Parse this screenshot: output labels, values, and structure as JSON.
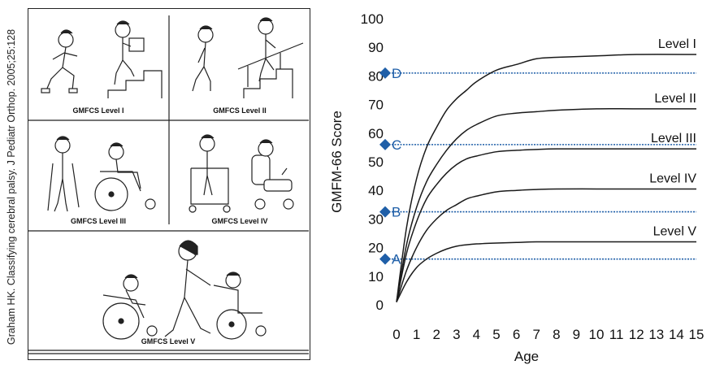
{
  "credit": "Graham HK. Classifying cerebral palsy. J Pediatr Orthop. 2005;25:128",
  "panels": {
    "l1": "GMFCS Level I",
    "l2": "GMFCS Level II",
    "l3": "GMFCS Level III",
    "l4": "GMFCS Level IV",
    "l5": "GMFCS Level V"
  },
  "chart_data": {
    "type": "line",
    "title": "",
    "xlabel": "Age",
    "ylabel": "GMFM-66 Score",
    "xlim": [
      0,
      15
    ],
    "ylim": [
      0,
      100
    ],
    "xticks": [
      0,
      1,
      2,
      3,
      4,
      5,
      6,
      7,
      8,
      9,
      10,
      11,
      12,
      13,
      14,
      15
    ],
    "yticks": [
      0,
      10,
      20,
      30,
      40,
      50,
      60,
      70,
      80,
      90,
      100
    ],
    "grid": false,
    "x": [
      0,
      0.5,
      1,
      1.5,
      2,
      2.5,
      3,
      3.5,
      4,
      5,
      6,
      7,
      8,
      10,
      12,
      15
    ],
    "series": [
      {
        "name": "Level I",
        "values": [
          1,
          27,
          44,
          55,
          62,
          68,
          72,
          75,
          78,
          82,
          84,
          86,
          86.5,
          87,
          87.5,
          87.5
        ]
      },
      {
        "name": "Level II",
        "values": [
          1,
          21,
          34,
          43,
          49,
          54,
          58,
          61,
          63,
          66,
          67,
          67.5,
          68,
          68.5,
          68.5,
          68.5
        ]
      },
      {
        "name": "Level III",
        "values": [
          1,
          18,
          29,
          37,
          42,
          46,
          49,
          51,
          52,
          53.5,
          54,
          54.3,
          54.5,
          54.5,
          54.5,
          54.5
        ]
      },
      {
        "name": "Level IV",
        "values": [
          1,
          12,
          20,
          26,
          30,
          33,
          35,
          37,
          38,
          39.5,
          40,
          40.3,
          40.5,
          40.5,
          40.5,
          40.5
        ]
      },
      {
        "name": "Level V",
        "values": [
          1,
          8,
          13,
          16,
          18,
          19.5,
          20.5,
          21,
          21.3,
          21.6,
          21.8,
          22,
          22,
          22,
          22,
          22
        ]
      }
    ],
    "reference_lines": [
      {
        "label": "A",
        "y": 16
      },
      {
        "label": "B",
        "y": 32.5
      },
      {
        "label": "C",
        "y": 56
      },
      {
        "label": "D",
        "y": 81
      }
    ],
    "colors": {
      "curve": "#1a1a1a",
      "reference": "#1f5fa8",
      "marker": "#1f5fa8",
      "label": "#1f5fa8"
    }
  }
}
